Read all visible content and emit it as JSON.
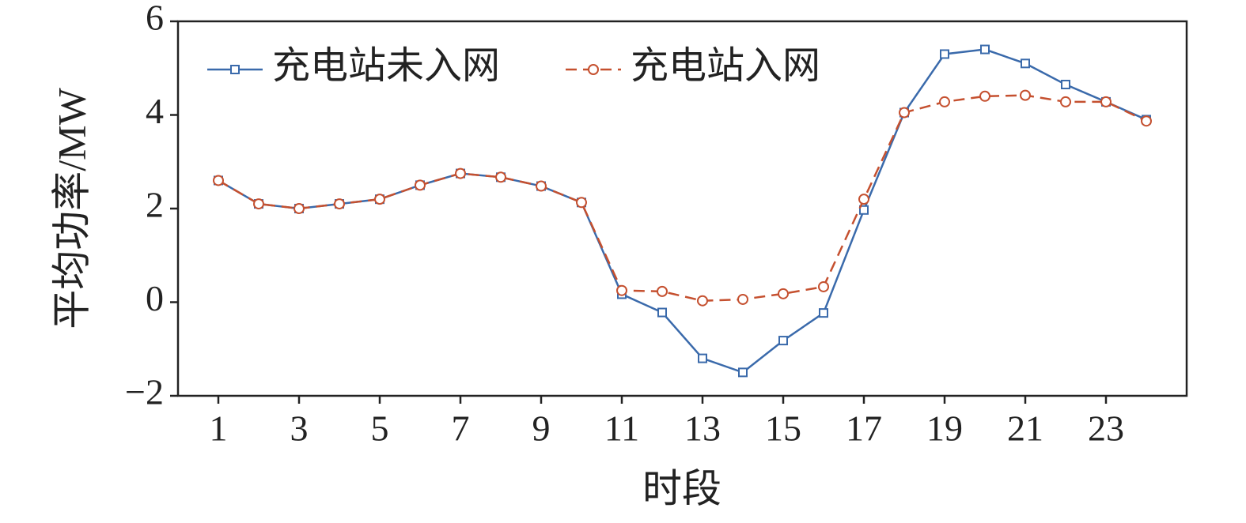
{
  "chart_data": {
    "type": "line",
    "xlabel": "时段",
    "ylabel": "平均功率/MW",
    "x": [
      1,
      2,
      3,
      4,
      5,
      6,
      7,
      8,
      9,
      10,
      11,
      12,
      13,
      14,
      15,
      16,
      17,
      18,
      19,
      20,
      21,
      22,
      23,
      24
    ],
    "series": [
      {
        "name": "充电站未入网",
        "color": "#3a6aab",
        "marker": "square",
        "dash": false,
        "values": [
          2.6,
          2.1,
          2.0,
          2.1,
          2.2,
          2.5,
          2.75,
          2.67,
          2.48,
          2.13,
          0.17,
          -0.22,
          -1.2,
          -1.5,
          -0.82,
          -0.23,
          1.97,
          4.05,
          5.3,
          5.4,
          5.1,
          4.65,
          4.28,
          3.9
        ]
      },
      {
        "name": "充电站入网",
        "color": "#c5502f",
        "marker": "circle",
        "dash": true,
        "values": [
          2.6,
          2.1,
          2.0,
          2.1,
          2.2,
          2.5,
          2.75,
          2.67,
          2.48,
          2.13,
          0.25,
          0.23,
          0.03,
          0.06,
          0.18,
          0.33,
          2.2,
          4.05,
          4.28,
          4.4,
          4.42,
          4.28,
          4.28,
          3.87
        ]
      }
    ],
    "xlim": [
      0,
      25
    ],
    "xticks": [
      1,
      3,
      5,
      7,
      9,
      11,
      13,
      15,
      17,
      19,
      21,
      23
    ],
    "ylim": [
      -2,
      6
    ],
    "yticks": [
      {
        "value": -2,
        "label": "−2"
      },
      0,
      2,
      4,
      6
    ],
    "grid": false,
    "legend": "upper left"
  }
}
